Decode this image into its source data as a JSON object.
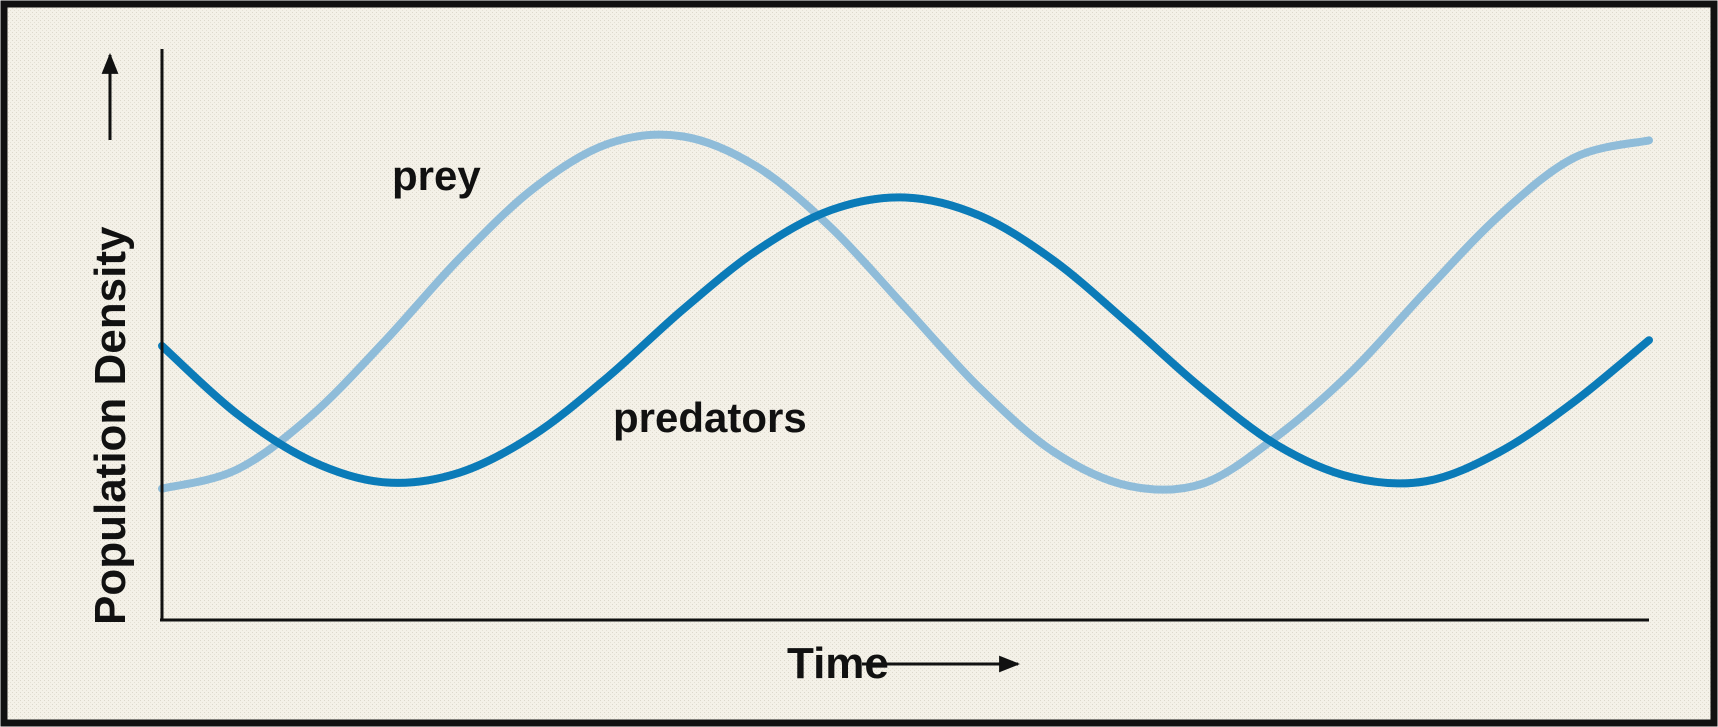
{
  "chart_data": {
    "type": "line",
    "x_label": "Time",
    "y_label": "Population Density",
    "x": [
      0,
      5,
      10,
      15,
      20,
      25,
      30,
      35,
      40,
      45,
      50,
      55,
      60,
      65,
      70,
      75,
      80,
      85,
      90,
      95,
      100
    ],
    "xlim": [
      0,
      100
    ],
    "ylim": [
      0,
      100
    ],
    "grid": false,
    "series": [
      {
        "name": "prey",
        "color": "#8fbcd9",
        "values": [
          23,
          26.3,
          35.7,
          48.9,
          63.3,
          75.6,
          83.4,
          84.7,
          79.4,
          68.7,
          54.7,
          40.6,
          29.4,
          23.5,
          23.9,
          32.2,
          43.5,
          57.6,
          71,
          81,
          84
        ]
      },
      {
        "name": "predators",
        "color": "#0b7bb8",
        "values": [
          48,
          36.2,
          27.9,
          24.1,
          25.8,
          32.4,
          42.6,
          54.3,
          64.7,
          71.8,
          74,
          70.8,
          62.9,
          51.9,
          40.4,
          30.6,
          25,
          24.3,
          29.5,
          38.3,
          49
        ]
      }
    ]
  }
}
